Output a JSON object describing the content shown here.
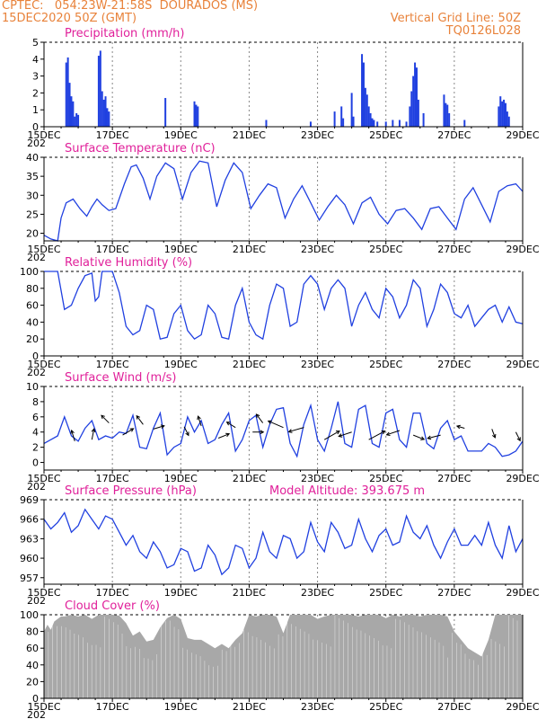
{
  "header": {
    "line1_left": "CPTEC:   054:23W-21:58S  DOURADOS (MS)",
    "line2_left": "15DEC2020 50Z (GMT)",
    "line1_right": "Vertical Grid Line: 50Z",
    "line2_right": "TQ0126L028"
  },
  "colors": {
    "series": "#2040e0",
    "title": "#e0209a",
    "header": "#e8823a",
    "cloud": "#a8a8a8",
    "bars": "#2040e0"
  },
  "x_axis": {
    "tick_labels": [
      "15DEC",
      "17DEC",
      "19DEC",
      "21DEC",
      "23DEC",
      "25DEC",
      "27DEC",
      "29DEC"
    ],
    "year_label": "202"
  },
  "chart_data": [
    {
      "id": "precip",
      "type": "bar",
      "title": "Precipitation (mm/h)",
      "ylim": [
        0,
        5
      ],
      "yticks": [
        0,
        1,
        2,
        3,
        4,
        5
      ],
      "grid": "vertical-dashed",
      "x_days": [
        0.65,
        0.7,
        0.75,
        0.8,
        0.85,
        0.9,
        0.95,
        1.0,
        1.6,
        1.65,
        1.7,
        1.75,
        1.8,
        1.85,
        1.9,
        3.55,
        4.4,
        4.45,
        4.5,
        6.5,
        7.8,
        8.5,
        8.7,
        8.75,
        9.0,
        9.05,
        9.3,
        9.35,
        9.4,
        9.45,
        9.5,
        9.55,
        9.6,
        9.65,
        9.75,
        10.0,
        10.2,
        10.4,
        10.6,
        10.7,
        10.75,
        10.8,
        10.85,
        10.9,
        10.95,
        11.1,
        11.7,
        11.75,
        11.8,
        11.85,
        12.3,
        13.3,
        13.35,
        13.4,
        13.45,
        13.5,
        13.55,
        13.6
      ],
      "values": [
        3.8,
        4.1,
        2.6,
        1.8,
        1.5,
        0.6,
        0.8,
        0.7,
        4.2,
        4.5,
        2.1,
        1.6,
        1.8,
        1.1,
        0.9,
        1.7,
        1.5,
        1.3,
        1.2,
        0.4,
        0.3,
        0.9,
        1.2,
        0.5,
        2.0,
        0.6,
        4.3,
        3.8,
        2.3,
        1.9,
        1.2,
        0.8,
        0.5,
        0.4,
        0.3,
        0.3,
        0.4,
        0.4,
        0.3,
        1.2,
        2.1,
        3.0,
        3.8,
        3.5,
        1.6,
        0.8,
        1.9,
        1.4,
        1.3,
        0.8,
        0.4,
        1.2,
        1.8,
        1.5,
        1.6,
        1.4,
        0.9,
        0.6
      ]
    },
    {
      "id": "temp",
      "type": "line",
      "title": "Surface Temperature (nC)",
      "ylim": [
        18,
        40
      ],
      "yticks": [
        20,
        25,
        30,
        35,
        40
      ],
      "grid": "vertical-dashed",
      "x_days": [
        0.0,
        0.2,
        0.4,
        0.5,
        0.65,
        0.85,
        1.05,
        1.25,
        1.4,
        1.55,
        1.7,
        1.9,
        2.1,
        2.35,
        2.55,
        2.7,
        2.9,
        3.1,
        3.3,
        3.55,
        3.8,
        4.05,
        4.3,
        4.55,
        4.8,
        5.05,
        5.3,
        5.55,
        5.8,
        6.05,
        6.3,
        6.55,
        6.8,
        7.05,
        7.3,
        7.55,
        7.8,
        8.05,
        8.3,
        8.55,
        8.8,
        9.05,
        9.3,
        9.55,
        9.8,
        10.05,
        10.3,
        10.55,
        10.8,
        11.05,
        11.3,
        11.55,
        11.8,
        12.05,
        12.3,
        12.55,
        12.8,
        13.05,
        13.3,
        13.55,
        13.8,
        14.0
      ],
      "values": [
        19.5,
        18.5,
        18.0,
        24.0,
        28.0,
        29.0,
        26.5,
        24.5,
        27.0,
        29.0,
        27.5,
        26.0,
        26.5,
        33.0,
        37.5,
        38.0,
        34.5,
        29.0,
        35.0,
        38.5,
        37.0,
        29.0,
        36.0,
        39.0,
        38.5,
        27.0,
        34.0,
        38.5,
        36.0,
        26.5,
        30.0,
        33.0,
        32.0,
        24.0,
        29.0,
        32.5,
        28.0,
        23.5,
        27.0,
        30.0,
        27.5,
        22.5,
        28.0,
        29.5,
        25.0,
        22.5,
        26.0,
        26.5,
        24.0,
        21.0,
        26.5,
        27.0,
        24.0,
        21.0,
        29.0,
        32.0,
        27.5,
        23.0,
        31.0,
        32.5,
        33.0,
        31.0
      ]
    },
    {
      "id": "rh",
      "type": "line",
      "title": "Relative Humidity (%)",
      "ylim": [
        0,
        100
      ],
      "yticks": [
        0,
        20,
        40,
        60,
        80,
        100
      ],
      "grid": "vertical-dashed",
      "x_days": [
        0.0,
        0.2,
        0.4,
        0.6,
        0.8,
        1.0,
        1.2,
        1.4,
        1.5,
        1.6,
        1.7,
        1.8,
        2.0,
        2.2,
        2.4,
        2.6,
        2.8,
        3.0,
        3.2,
        3.4,
        3.6,
        3.8,
        4.0,
        4.2,
        4.4,
        4.6,
        4.8,
        5.0,
        5.2,
        5.4,
        5.6,
        5.8,
        6.0,
        6.2,
        6.4,
        6.6,
        6.8,
        7.0,
        7.2,
        7.4,
        7.6,
        7.8,
        8.0,
        8.2,
        8.4,
        8.6,
        8.8,
        9.0,
        9.2,
        9.4,
        9.6,
        9.8,
        10.0,
        10.2,
        10.4,
        10.6,
        10.8,
        11.0,
        11.2,
        11.4,
        11.6,
        11.8,
        12.0,
        12.2,
        12.4,
        12.6,
        12.8,
        13.0,
        13.2,
        13.4,
        13.6,
        13.8,
        14.0
      ],
      "values": [
        100,
        100,
        100,
        55,
        60,
        80,
        95,
        98,
        65,
        70,
        100,
        100,
        100,
        75,
        35,
        25,
        30,
        60,
        55,
        20,
        22,
        50,
        60,
        30,
        20,
        25,
        60,
        50,
        22,
        20,
        60,
        80,
        40,
        25,
        20,
        60,
        85,
        80,
        35,
        40,
        85,
        95,
        85,
        55,
        80,
        90,
        80,
        35,
        60,
        75,
        55,
        45,
        80,
        70,
        45,
        60,
        90,
        80,
        35,
        55,
        85,
        75,
        50,
        45,
        60,
        35,
        45,
        55,
        60,
        40,
        58,
        40,
        38
      ]
    },
    {
      "id": "wind",
      "type": "line",
      "title": "Surface Wind (m/s)",
      "ylim": [
        -1,
        10
      ],
      "yticks": [
        0,
        2,
        4,
        6,
        8,
        10
      ],
      "grid": "vertical-dashed",
      "x_days": [
        0.0,
        0.2,
        0.4,
        0.6,
        0.8,
        1.0,
        1.2,
        1.4,
        1.6,
        1.8,
        2.0,
        2.2,
        2.4,
        2.6,
        2.8,
        3.0,
        3.2,
        3.4,
        3.6,
        3.8,
        4.0,
        4.2,
        4.4,
        4.6,
        4.8,
        5.0,
        5.2,
        5.4,
        5.6,
        5.8,
        6.0,
        6.2,
        6.4,
        6.6,
        6.8,
        7.0,
        7.2,
        7.4,
        7.6,
        7.8,
        8.0,
        8.2,
        8.4,
        8.6,
        8.8,
        9.0,
        9.2,
        9.4,
        9.6,
        9.8,
        10.0,
        10.2,
        10.4,
        10.6,
        10.8,
        11.0,
        11.2,
        11.4,
        11.6,
        11.8,
        12.0,
        12.2,
        12.4,
        12.6,
        12.8,
        13.0,
        13.2,
        13.4,
        13.6,
        13.8,
        14.0
      ],
      "values": [
        2.5,
        3.0,
        3.5,
        6.0,
        3.5,
        2.8,
        4.5,
        5.5,
        3.0,
        3.5,
        3.2,
        4.0,
        3.8,
        6.2,
        2.0,
        1.8,
        4.5,
        6.5,
        1.0,
        2.0,
        2.5,
        6.0,
        4.0,
        5.5,
        2.5,
        3.0,
        5.0,
        6.5,
        1.5,
        3.0,
        5.5,
        6.2,
        2.0,
        5.0,
        7.0,
        7.2,
        2.5,
        0.8,
        5.0,
        7.5,
        3.0,
        1.5,
        4.5,
        8.0,
        2.5,
        2.0,
        7.0,
        7.5,
        2.5,
        2.0,
        6.5,
        7.0,
        3.0,
        2.0,
        6.5,
        6.5,
        2.5,
        1.8,
        4.5,
        5.5,
        3.0,
        3.5,
        1.5,
        1.5,
        1.5,
        2.5,
        2.0,
        0.8,
        1.0,
        1.5,
        2.8
      ],
      "arrows": [
        {
          "x": 0.9,
          "y": 2.8,
          "u": -0.3,
          "v": 1.0
        },
        {
          "x": 1.4,
          "y": 3.0,
          "u": 0.2,
          "v": 1.0
        },
        {
          "x": 1.9,
          "y": 5.2,
          "u": -0.7,
          "v": 0.7
        },
        {
          "x": 2.3,
          "y": 3.6,
          "u": 1.0,
          "v": 0.6
        },
        {
          "x": 2.9,
          "y": 5.0,
          "u": -0.6,
          "v": 0.8
        },
        {
          "x": 3.2,
          "y": 4.4,
          "u": 1.0,
          "v": 0.3
        },
        {
          "x": 4.1,
          "y": 4.7,
          "u": 0.4,
          "v": -0.8
        },
        {
          "x": 4.6,
          "y": 4.8,
          "u": -0.3,
          "v": 0.9
        },
        {
          "x": 5.1,
          "y": 3.2,
          "u": 1.0,
          "v": 0.4
        },
        {
          "x": 5.6,
          "y": 4.6,
          "u": -0.8,
          "v": 0.5
        },
        {
          "x": 6.1,
          "y": 4.0,
          "u": 1.0,
          "v": 0.0
        },
        {
          "x": 6.4,
          "y": 5.2,
          "u": -0.6,
          "v": 0.8
        },
        {
          "x": 7.0,
          "y": 4.6,
          "u": -1.4,
          "v": 0.6
        },
        {
          "x": 7.6,
          "y": 4.6,
          "u": -1.4,
          "v": -0.4
        },
        {
          "x": 8.2,
          "y": 3.0,
          "u": 1.4,
          "v": 0.8
        },
        {
          "x": 9.0,
          "y": 4.0,
          "u": -1.2,
          "v": -0.4
        },
        {
          "x": 9.5,
          "y": 3.0,
          "u": 1.5,
          "v": 0.8
        },
        {
          "x": 10.4,
          "y": 4.2,
          "u": -1.2,
          "v": -0.4
        },
        {
          "x": 10.8,
          "y": 3.6,
          "u": 1.0,
          "v": -0.4
        },
        {
          "x": 11.6,
          "y": 3.6,
          "u": -1.2,
          "v": -0.3
        },
        {
          "x": 12.3,
          "y": 4.5,
          "u": -0.7,
          "v": 0.2
        },
        {
          "x": 13.1,
          "y": 4.4,
          "u": 0.3,
          "v": -0.8
        },
        {
          "x": 13.8,
          "y": 4.0,
          "u": 0.4,
          "v": -0.8
        }
      ]
    },
    {
      "id": "pres",
      "type": "line",
      "title": "Surface Pressure (hPa)",
      "subtitle": "Model Altitude: 393.675 m",
      "ylim": [
        956,
        969
      ],
      "yticks": [
        957,
        960,
        963,
        966,
        969
      ],
      "grid": "vertical-dashed",
      "x_days": [
        0.0,
        0.2,
        0.4,
        0.6,
        0.8,
        1.0,
        1.2,
        1.4,
        1.6,
        1.8,
        2.0,
        2.2,
        2.4,
        2.6,
        2.8,
        3.0,
        3.2,
        3.4,
        3.6,
        3.8,
        4.0,
        4.2,
        4.4,
        4.6,
        4.8,
        5.0,
        5.2,
        5.4,
        5.6,
        5.8,
        6.0,
        6.2,
        6.4,
        6.6,
        6.8,
        7.0,
        7.2,
        7.4,
        7.6,
        7.8,
        8.0,
        8.2,
        8.4,
        8.6,
        8.8,
        9.0,
        9.2,
        9.4,
        9.6,
        9.8,
        10.0,
        10.2,
        10.4,
        10.6,
        10.8,
        11.0,
        11.2,
        11.4,
        11.6,
        11.8,
        12.0,
        12.2,
        12.4,
        12.6,
        12.8,
        13.0,
        13.2,
        13.4,
        13.6,
        13.8,
        14.0
      ],
      "values": [
        966.0,
        964.5,
        965.5,
        967.0,
        964.0,
        965.0,
        967.5,
        966.0,
        964.5,
        966.5,
        966.0,
        964.0,
        962.0,
        963.5,
        961.0,
        960.0,
        962.5,
        961.0,
        958.5,
        959.0,
        961.5,
        961.0,
        958.0,
        958.5,
        962.0,
        960.5,
        957.5,
        958.5,
        962.0,
        961.5,
        958.5,
        960.0,
        964.0,
        961.0,
        960.0,
        963.5,
        963.0,
        960.0,
        961.0,
        965.5,
        962.5,
        961.0,
        965.5,
        964.0,
        961.5,
        962.0,
        966.0,
        963.0,
        961.0,
        963.5,
        964.5,
        962.0,
        962.5,
        966.5,
        964.0,
        963.0,
        965.0,
        962.0,
        960.0,
        962.5,
        964.5,
        962.0,
        962.0,
        963.5,
        962.0,
        965.5,
        962.0,
        960.0,
        965.0,
        961.0,
        963.0
      ]
    },
    {
      "id": "cloud",
      "type": "area",
      "title": "Cloud Cover (%)",
      "ylim": [
        0,
        100
      ],
      "yticks": [
        0,
        20,
        40,
        60,
        80,
        100
      ],
      "grid": "vertical-dashed",
      "x_days": [
        0.0,
        0.1,
        0.2,
        0.3,
        0.4,
        0.5,
        0.6,
        0.8,
        1.0,
        1.2,
        1.4,
        1.6,
        1.8,
        2.0,
        2.2,
        2.4,
        2.6,
        2.8,
        3.0,
        3.2,
        3.4,
        3.6,
        3.8,
        4.0,
        4.2,
        4.4,
        4.6,
        4.8,
        5.0,
        5.2,
        5.4,
        5.6,
        5.8,
        6.0,
        6.2,
        6.4,
        6.6,
        6.8,
        7.0,
        7.2,
        7.4,
        7.6,
        7.8,
        8.0,
        8.2,
        8.4,
        8.6,
        8.8,
        9.0,
        9.2,
        9.4,
        9.6,
        9.8,
        10.0,
        10.2,
        10.4,
        10.6,
        10.8,
        11.0,
        11.2,
        11.4,
        11.6,
        11.8,
        12.0,
        12.2,
        12.4,
        12.6,
        12.8,
        13.0,
        13.2,
        13.4,
        13.6,
        13.8,
        14.0
      ],
      "values": [
        80,
        88,
        82,
        92,
        95,
        98,
        98,
        100,
        98,
        100,
        95,
        100,
        100,
        100,
        99,
        90,
        75,
        80,
        68,
        70,
        85,
        96,
        100,
        95,
        72,
        70,
        70,
        65,
        60,
        65,
        60,
        70,
        78,
        100,
        98,
        100,
        100,
        98,
        78,
        100,
        100,
        100,
        100,
        95,
        98,
        100,
        100,
        100,
        100,
        98,
        100,
        100,
        100,
        96,
        100,
        98,
        100,
        100,
        98,
        100,
        100,
        100,
        98,
        80,
        70,
        60,
        55,
        50,
        70,
        100,
        100,
        100,
        100,
        100
      ]
    }
  ]
}
